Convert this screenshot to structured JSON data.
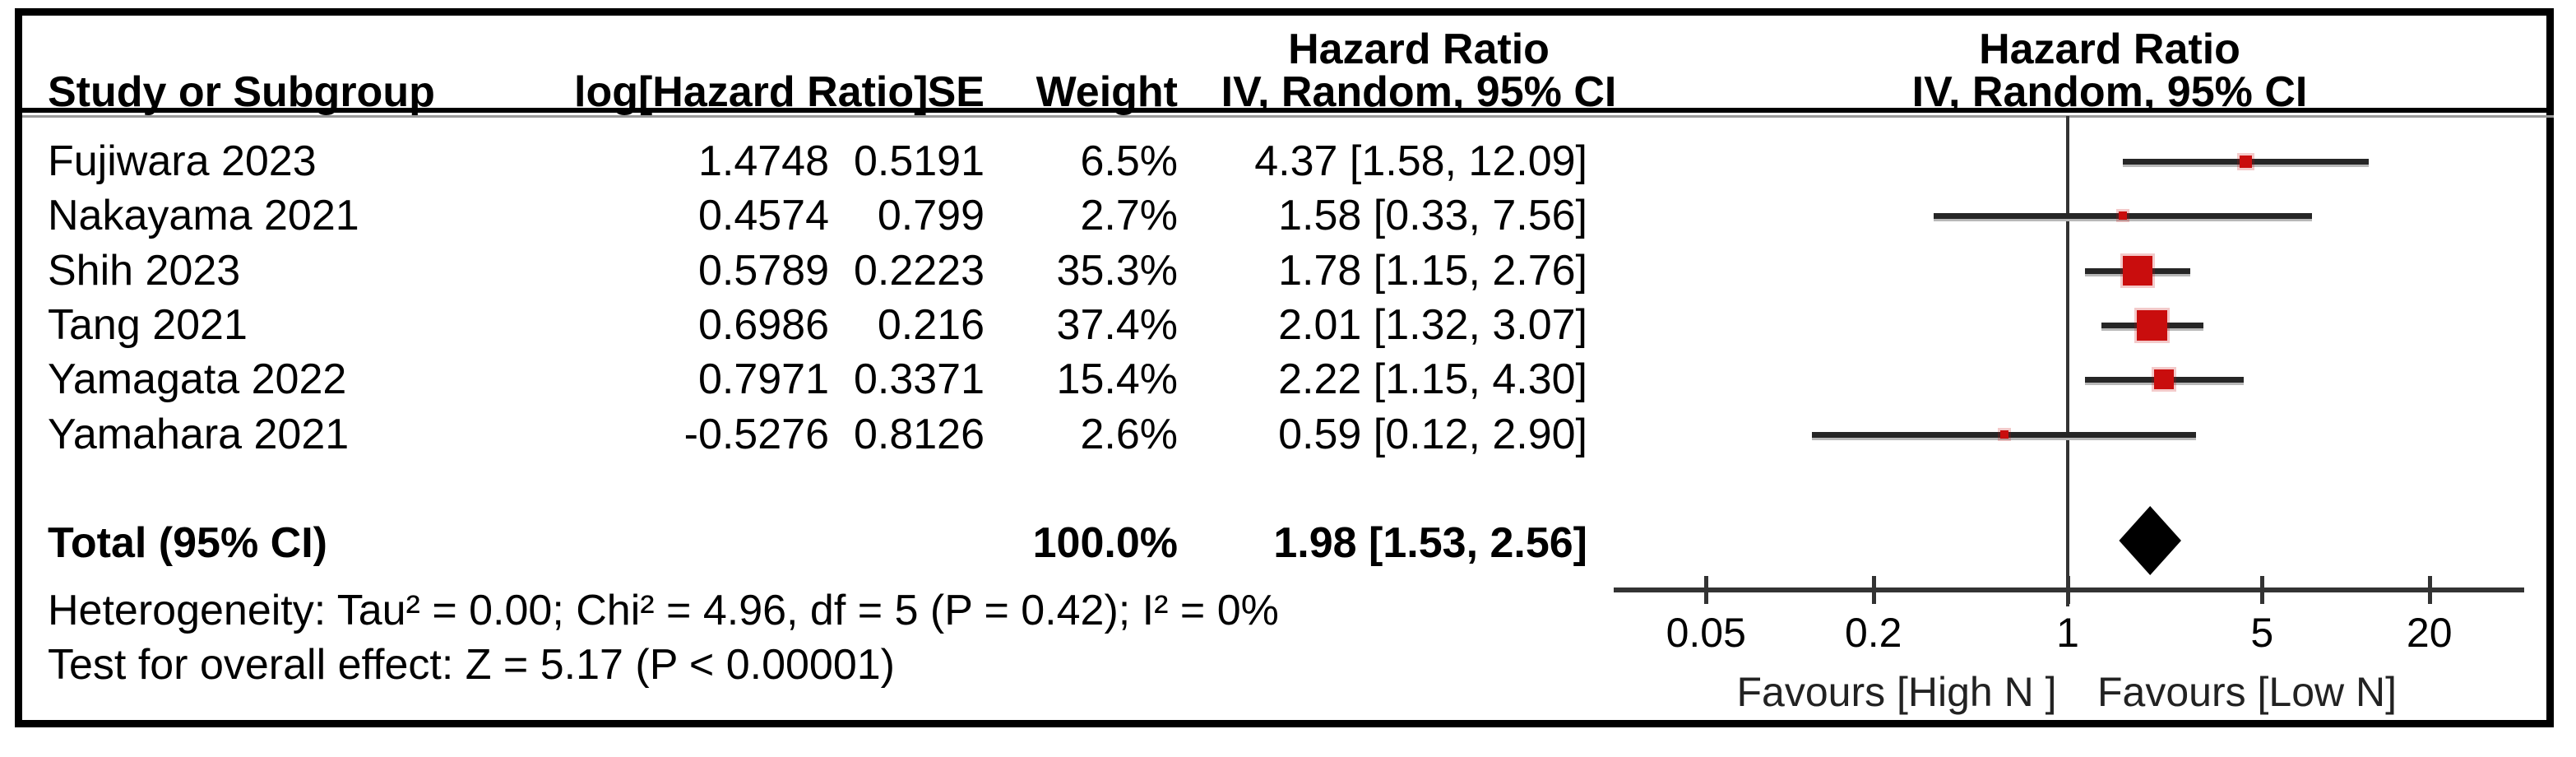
{
  "figure": {
    "columns": {
      "study": "Study or Subgroup",
      "log_hr": "log[Hazard Ratio]",
      "se": "SE",
      "weight": "Weight",
      "effect_title": "Hazard Ratio",
      "effect_subtitle": "IV, Random, 95% CI"
    },
    "graph_header": {
      "title": "Hazard Ratio",
      "subtitle": "IV, Random, 95% CI"
    }
  },
  "rows": [
    {
      "study": "Fujiwara 2023",
      "log_hr": "1.4748",
      "se": "0.5191",
      "weight": "6.5%",
      "ci": "4.37 [1.58, 12.09]"
    },
    {
      "study": "Nakayama 2021",
      "log_hr": "0.4574",
      "se": "0.799",
      "weight": "2.7%",
      "ci": "1.58 [0.33, 7.56]"
    },
    {
      "study": "Shih 2023",
      "log_hr": "0.5789",
      "se": "0.2223",
      "weight": "35.3%",
      "ci": "1.78 [1.15, 2.76]"
    },
    {
      "study": "Tang 2021",
      "log_hr": "0.6986",
      "se": "0.216",
      "weight": "37.4%",
      "ci": "2.01 [1.32, 3.07]"
    },
    {
      "study": "Yamagata 2022",
      "log_hr": "0.7971",
      "se": "0.3371",
      "weight": "15.4%",
      "ci": "2.22 [1.15, 4.30]"
    },
    {
      "study": "Yamahara 2021",
      "log_hr": "-0.5276",
      "se": "0.8126",
      "weight": "2.6%",
      "ci": "0.59 [0.12, 2.90]"
    }
  ],
  "total": {
    "label": "Total (95% CI)",
    "weight": "100.0%",
    "ci": "1.98 [1.53, 2.56]"
  },
  "footer": {
    "heterogeneity": "Heterogeneity: Tau² = 0.00; Chi² = 4.96, df = 5 (P = 0.42); I² = 0%",
    "overall_effect": "Test for overall effect: Z = 5.17 (P < 0.00001)"
  },
  "axis": {
    "tick_labels": [
      "0.05",
      "0.2",
      "1",
      "5",
      "20"
    ],
    "favours_left": "Favours [High N ]",
    "favours_right": "Favours [Low N]"
  },
  "colors": {
    "marker_red": "#c90d0d",
    "line_dark": "#262626",
    "diamond_black": "#000000"
  },
  "chart_data": {
    "type": "forest",
    "effect_measure": "Hazard Ratio",
    "model": "IV, Random, 95% CI",
    "x_scale": "log",
    "x_ticks": [
      0.05,
      0.2,
      1,
      5,
      20
    ],
    "no_effect_line": 1,
    "studies": [
      {
        "name": "Fujiwara 2023",
        "log_hr": 1.4748,
        "se": 0.5191,
        "weight_pct": 6.5,
        "hr": 4.37,
        "ci_low": 1.58,
        "ci_high": 12.09
      },
      {
        "name": "Nakayama 2021",
        "log_hr": 0.4574,
        "se": 0.799,
        "weight_pct": 2.7,
        "hr": 1.58,
        "ci_low": 0.33,
        "ci_high": 7.56
      },
      {
        "name": "Shih 2023",
        "log_hr": 0.5789,
        "se": 0.2223,
        "weight_pct": 35.3,
        "hr": 1.78,
        "ci_low": 1.15,
        "ci_high": 2.76
      },
      {
        "name": "Tang 2021",
        "log_hr": 0.6986,
        "se": 0.216,
        "weight_pct": 37.4,
        "hr": 2.01,
        "ci_low": 1.32,
        "ci_high": 3.07
      },
      {
        "name": "Yamagata 2022",
        "log_hr": 0.7971,
        "se": 0.3371,
        "weight_pct": 15.4,
        "hr": 2.22,
        "ci_low": 1.15,
        "ci_high": 4.3
      },
      {
        "name": "Yamahara 2021",
        "log_hr": -0.5276,
        "se": 0.8126,
        "weight_pct": 2.6,
        "hr": 0.59,
        "ci_low": 0.12,
        "ci_high": 2.9
      }
    ],
    "total": {
      "hr": 1.98,
      "ci_low": 1.53,
      "ci_high": 2.56,
      "weight_pct": 100.0
    },
    "heterogeneity": {
      "tau2": 0.0,
      "chi2": 4.96,
      "df": 5,
      "p": 0.42,
      "i2_pct": 0
    },
    "overall_effect": {
      "z": 5.17,
      "p": "< 0.00001"
    },
    "favours": {
      "left": "Favours [High N ]",
      "right": "Favours [Low N]"
    }
  }
}
